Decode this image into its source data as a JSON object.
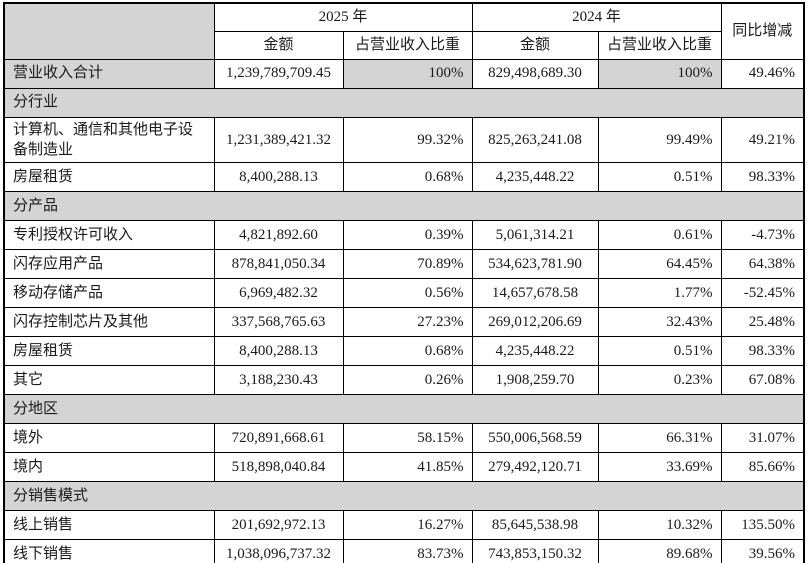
{
  "colors": {
    "section_bg": "#d4d4d4",
    "border": "#000000",
    "text": "#1a1a1a"
  },
  "table": {
    "header": {
      "corner": "",
      "col_2025": "2025 年",
      "col_2024": "2024 年",
      "col_yoy": "同比增减",
      "col_amount": "金额",
      "col_share": "占营业收入比重"
    },
    "rows": [
      {
        "type": "data",
        "highlight": true,
        "label": "营业收入合计",
        "amount_2025": "1,239,789,709.45",
        "share_2025": "100%",
        "amount_2024": "829,498,689.30",
        "share_2024": "100%",
        "yoy": "49.46%"
      },
      {
        "type": "section",
        "label": "分行业"
      },
      {
        "type": "data",
        "label": "计算机、通信和其他电子设备制造业",
        "amount_2025": "1,231,389,421.32",
        "share_2025": "99.32%",
        "amount_2024": "825,263,241.08",
        "share_2024": "99.49%",
        "yoy": "49.21%"
      },
      {
        "type": "data",
        "label": "房屋租赁",
        "amount_2025": "8,400,288.13",
        "share_2025": "0.68%",
        "amount_2024": "4,235,448.22",
        "share_2024": "0.51%",
        "yoy": "98.33%"
      },
      {
        "type": "section",
        "label": "分产品"
      },
      {
        "type": "data",
        "label": "专利授权许可收入",
        "amount_2025": "4,821,892.60",
        "share_2025": "0.39%",
        "amount_2024": "5,061,314.21",
        "share_2024": "0.61%",
        "yoy": "-4.73%"
      },
      {
        "type": "data",
        "label": "闪存应用产品",
        "amount_2025": "878,841,050.34",
        "share_2025": "70.89%",
        "amount_2024": "534,623,781.90",
        "share_2024": "64.45%",
        "yoy": "64.38%"
      },
      {
        "type": "data",
        "label": "移动存储产品",
        "amount_2025": "6,969,482.32",
        "share_2025": "0.56%",
        "amount_2024": "14,657,678.58",
        "share_2024": "1.77%",
        "yoy": "-52.45%"
      },
      {
        "type": "data",
        "label": "闪存控制芯片及其他",
        "amount_2025": "337,568,765.63",
        "share_2025": "27.23%",
        "amount_2024": "269,012,206.69",
        "share_2024": "32.43%",
        "yoy": "25.48%"
      },
      {
        "type": "data",
        "label": "房屋租赁",
        "amount_2025": "8,400,288.13",
        "share_2025": "0.68%",
        "amount_2024": "4,235,448.22",
        "share_2024": "0.51%",
        "yoy": "98.33%"
      },
      {
        "type": "data",
        "label": "其它",
        "amount_2025": "3,188,230.43",
        "share_2025": "0.26%",
        "amount_2024": "1,908,259.70",
        "share_2024": "0.23%",
        "yoy": "67.08%"
      },
      {
        "type": "section",
        "label": "分地区"
      },
      {
        "type": "data",
        "label": "境外",
        "amount_2025": "720,891,668.61",
        "share_2025": "58.15%",
        "amount_2024": "550,006,568.59",
        "share_2024": "66.31%",
        "yoy": "31.07%"
      },
      {
        "type": "data",
        "label": "境内",
        "amount_2025": "518,898,040.84",
        "share_2025": "41.85%",
        "amount_2024": "279,492,120.71",
        "share_2024": "33.69%",
        "yoy": "85.66%"
      },
      {
        "type": "section",
        "label": "分销售模式"
      },
      {
        "type": "data",
        "label": "线上销售",
        "amount_2025": "201,692,972.13",
        "share_2025": "16.27%",
        "amount_2024": "85,645,538.98",
        "share_2024": "10.32%",
        "yoy": "135.50%"
      },
      {
        "type": "data",
        "label": "线下销售",
        "amount_2025": "1,038,096,737.32",
        "share_2025": "83.73%",
        "amount_2024": "743,853,150.32",
        "share_2024": "89.68%",
        "yoy": "39.56%"
      }
    ]
  }
}
